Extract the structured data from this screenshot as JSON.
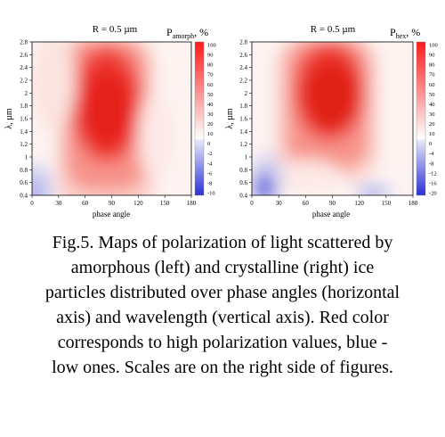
{
  "caption_lines": [
    "Fig.5. Maps of polarization of light scattered by",
    "amorphous (left) and crystalline (right) ice",
    "particles distributed over phase angles (horizontal",
    "axis) and wavelength (vertical axis). Red color",
    "corresponds to high polarization values,  blue -",
    "low ones. Scales are on the right side of figures."
  ],
  "chart_data": [
    {
      "type": "heatmap",
      "title": "R = 0.5 µm",
      "colorbar_label": {
        "main": "P",
        "sub": "amorph",
        "unit": ", %"
      },
      "xlabel": "phase angle",
      "ylabel": "λ, µm",
      "xlim": [
        0,
        180
      ],
      "ylim": [
        0.4,
        2.8
      ],
      "xticks": [
        "0",
        "30",
        "60",
        "90",
        "120",
        "150",
        "180"
      ],
      "yticks": [
        "0.4",
        "0.6",
        "0.8",
        "1",
        "1.2",
        "1.4",
        "1.6",
        "1.8",
        "2",
        "2.2",
        "2.4",
        "2.6",
        "2.8"
      ],
      "colorbar_ticks": [
        "100",
        "90",
        "80",
        "70",
        "60",
        "50",
        "40",
        "30",
        "20",
        "10",
        "0",
        "-2",
        "-4",
        "-6",
        "-8",
        "-10"
      ],
      "peak": {
        "phase_angle": 88,
        "wavelength": 1.7,
        "value": 90
      },
      "negative_region": {
        "phase_angle": 8,
        "wavelength": 0.5,
        "value": -6
      }
    },
    {
      "type": "heatmap",
      "title": "R = 0.5 µm",
      "colorbar_label": {
        "main": "P",
        "sub": "hex",
        "unit": ", %"
      },
      "xlabel": "phase angle",
      "ylabel": "λ, µm",
      "xlim": [
        0,
        180
      ],
      "ylim": [
        0.4,
        2.8
      ],
      "xticks": [
        "0",
        "30",
        "60",
        "90",
        "120",
        "150",
        "180"
      ],
      "yticks": [
        "0.4",
        "0.6",
        "0.8",
        "1",
        "1.2",
        "1.4",
        "1.6",
        "1.8",
        "2",
        "2.2",
        "2.4",
        "2.6",
        "2.8"
      ],
      "colorbar_ticks": [
        "100",
        "90",
        "80",
        "70",
        "60",
        "50",
        "40",
        "30",
        "20",
        "10",
        "0",
        "-4",
        "-8",
        "-12",
        "-16",
        "-20"
      ],
      "peak": {
        "phase_angle": 92,
        "wavelength": 1.9,
        "value": 95
      },
      "negative_region": {
        "phase_angle": 16,
        "wavelength": 0.5,
        "value": -16
      },
      "negative_region_2": {
        "phase_angle": 140,
        "wavelength": 0.45,
        "value": -6
      }
    }
  ]
}
